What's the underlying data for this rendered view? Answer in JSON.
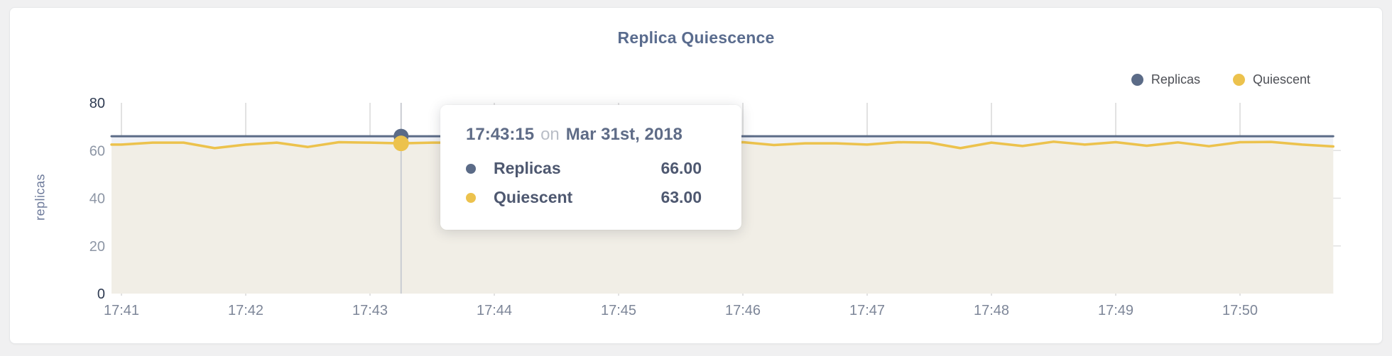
{
  "header": {
    "title": "Replica Quiescence"
  },
  "legend": {
    "items": [
      {
        "label": "Replicas",
        "color": "#5b6b87"
      },
      {
        "label": "Quiescent",
        "color": "#ecc24d"
      }
    ]
  },
  "tooltip": {
    "time": "17:43:15",
    "connector": "on",
    "date": "Mar 31st, 2018",
    "rows": [
      {
        "label": "Replicas",
        "value": "66.00",
        "color": "#5b6b87"
      },
      {
        "label": "Quiescent",
        "value": "63.00",
        "color": "#ecc24d"
      }
    ]
  },
  "axes": {
    "ylabel": "replicas"
  },
  "colors": {
    "grid": "#d9d9d9",
    "grid_h": "#e2e2e2",
    "hover_line": "#c9ccd2",
    "axis_strong": "#2f3b52",
    "axis_muted": "#8d96a5",
    "xtick": "#7d8698"
  },
  "chart_data": {
    "type": "line",
    "title": "Replica Quiescence",
    "xlabel": "",
    "ylabel": "replicas",
    "ylim": [
      0,
      80
    ],
    "yticks": [
      0,
      20,
      40,
      60,
      80
    ],
    "xticks": [
      "17:41",
      "17:42",
      "17:43",
      "17:44",
      "17:45",
      "17:46",
      "17:47",
      "17:48",
      "17:49",
      "17:50"
    ],
    "grid": true,
    "legend_position": "top-right",
    "x": [
      "17:41:00",
      "17:41:15",
      "17:41:30",
      "17:41:45",
      "17:42:00",
      "17:42:15",
      "17:42:30",
      "17:42:45",
      "17:43:00",
      "17:43:15",
      "17:43:30",
      "17:43:45",
      "17:44:00",
      "17:44:15",
      "17:44:30",
      "17:44:45",
      "17:45:00",
      "17:45:15",
      "17:45:30",
      "17:45:45",
      "17:46:00",
      "17:46:15",
      "17:46:30",
      "17:46:45",
      "17:47:00",
      "17:47:15",
      "17:47:30",
      "17:47:45",
      "17:48:00",
      "17:48:15",
      "17:48:30",
      "17:48:45",
      "17:49:00",
      "17:49:15",
      "17:49:30",
      "17:49:45",
      "17:50:00",
      "17:50:15",
      "17:50:30",
      "17:50:45"
    ],
    "series": [
      {
        "name": "Replicas",
        "color": "#5b6b87",
        "fill": "#eef0f5",
        "line_width": 3,
        "values": [
          66,
          66,
          66,
          66,
          66,
          66,
          66,
          66,
          66,
          66,
          66,
          66,
          66,
          66,
          66,
          66,
          66,
          66,
          66,
          66,
          66,
          66,
          66,
          66,
          66,
          66,
          66,
          66,
          66,
          66,
          66,
          66,
          66,
          66,
          66,
          66,
          66,
          66,
          66,
          66
        ]
      },
      {
        "name": "Quiescent",
        "color": "#ecc24d",
        "fill": "#f1eee4",
        "line_width": 3.5,
        "values": [
          62.5,
          63.3,
          63.3,
          61.0,
          62.5,
          63.3,
          61.5,
          63.5,
          63.3,
          63.0,
          63.3,
          63.3,
          63.0,
          63.3,
          62.8,
          63.2,
          63.0,
          63.3,
          62.8,
          63.2,
          63.5,
          62.3,
          63.0,
          63.0,
          62.5,
          63.5,
          63.3,
          61.0,
          63.3,
          61.9,
          63.7,
          62.5,
          63.5,
          62.0,
          63.4,
          61.8,
          63.5,
          63.6,
          62.5,
          61.7
        ]
      }
    ],
    "hover": {
      "index": 9,
      "time": "17:43:15",
      "values": [
        66.0,
        63.0
      ]
    }
  }
}
